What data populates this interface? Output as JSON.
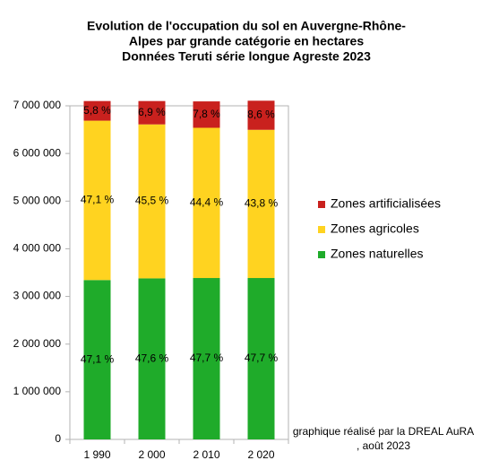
{
  "chart_data": {
    "type": "stacked-bar",
    "title": [
      "Evolution de l'occupation du sol en Auvergne-Rhône-",
      "Alpes par grande catégorie en hectares",
      "Données Teruti série longue Agreste 2023"
    ],
    "categories": [
      "1 990",
      "2 000",
      "2 010",
      "2 020"
    ],
    "series": [
      {
        "name": "Zones naturelles",
        "color": "#1fab2a",
        "values": [
          3344100,
          3379600,
          3386700,
          3386700
        ],
        "value_labels": [
          "47,1 %",
          "47,6 %",
          "47,7 %",
          "47,7 %"
        ]
      },
      {
        "name": "Zones agricoles",
        "color": "#ffd320",
        "values": [
          3344100,
          3230500,
          3152400,
          3109800
        ],
        "value_labels": [
          "47,1 %",
          "45,5 %",
          "44,4 %",
          "43,8 %"
        ]
      },
      {
        "name": "Zones artificialisées",
        "color": "#c9211e",
        "values": [
          411800,
          489900,
          553800,
          610600
        ],
        "value_labels": [
          "5,8 %",
          "6,9 %",
          "7,8 %",
          "8,6 %"
        ]
      }
    ],
    "ylim": [
      0,
      7000000
    ],
    "yticks": [
      0,
      {
        "value": 1000000,
        "label": "1 000 000"
      },
      {
        "value": 2000000,
        "label": "2 000 000"
      },
      {
        "value": 3000000,
        "label": "3 000 000"
      },
      {
        "value": 4000000,
        "label": "4 000 000"
      },
      {
        "value": 5000000,
        "label": "5 000 000"
      },
      {
        "value": 6000000,
        "label": "6 000 000"
      },
      {
        "value": 7000000,
        "label": "7 000 000"
      }
    ],
    "legend": "right",
    "annotation": [
      "graphique réalisé par la DREAL AuRA",
      ", août 2023"
    ]
  }
}
